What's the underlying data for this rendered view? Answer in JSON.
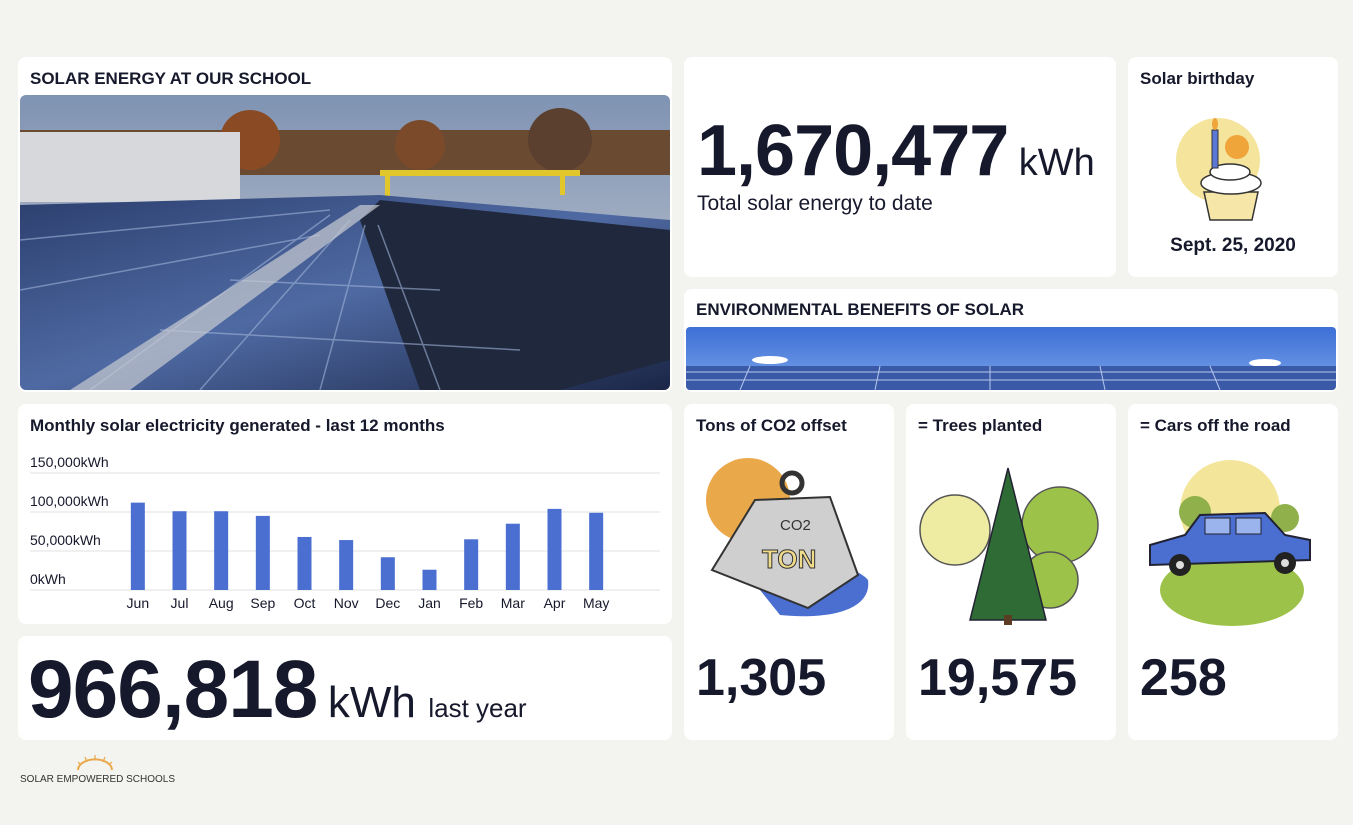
{
  "solar_card": {
    "title": "SOLAR ENERGY AT OUR SCHOOL"
  },
  "total": {
    "value": "1,670,477",
    "unit": "kWh",
    "label": "Total solar energy to date"
  },
  "birthday": {
    "title": "Solar birthday",
    "date": "Sept. 25, 2020"
  },
  "environment": {
    "title": "ENVIRONMENTAL BENEFITS OF SOLAR"
  },
  "chart_data": {
    "type": "bar",
    "title": "Monthly solar electricity generated - last 12 months",
    "categories": [
      "Jun",
      "Jul",
      "Aug",
      "Sep",
      "Oct",
      "Nov",
      "Dec",
      "Jan",
      "Feb",
      "Mar",
      "Apr",
      "May"
    ],
    "values": [
      112000,
      101000,
      101000,
      95000,
      68000,
      64000,
      42000,
      26000,
      65000,
      85000,
      104000,
      99000
    ],
    "color": "#4a6fd1",
    "ylim": [
      0,
      150000
    ],
    "yticks": [
      {
        "value": 0,
        "label": "0kWh"
      },
      {
        "value": 50000,
        "label": "50,000kWh"
      },
      {
        "value": 100000,
        "label": "100,000kWh"
      },
      {
        "value": 150000,
        "label": "150,000kWh"
      }
    ],
    "grid": true
  },
  "last_year": {
    "value": "966,818",
    "unit": "kWh",
    "label": "last year"
  },
  "benefits": [
    {
      "title": "Tons of CO2 offset",
      "value": "1,305",
      "illustration_text": [
        "CO2",
        "TON"
      ]
    },
    {
      "title": "= Trees planted",
      "value": "19,575"
    },
    {
      "title": "= Cars off the road",
      "value": "258"
    }
  ],
  "footer": {
    "logo": "SOLAR EMPOWERED SCHOOLS"
  }
}
